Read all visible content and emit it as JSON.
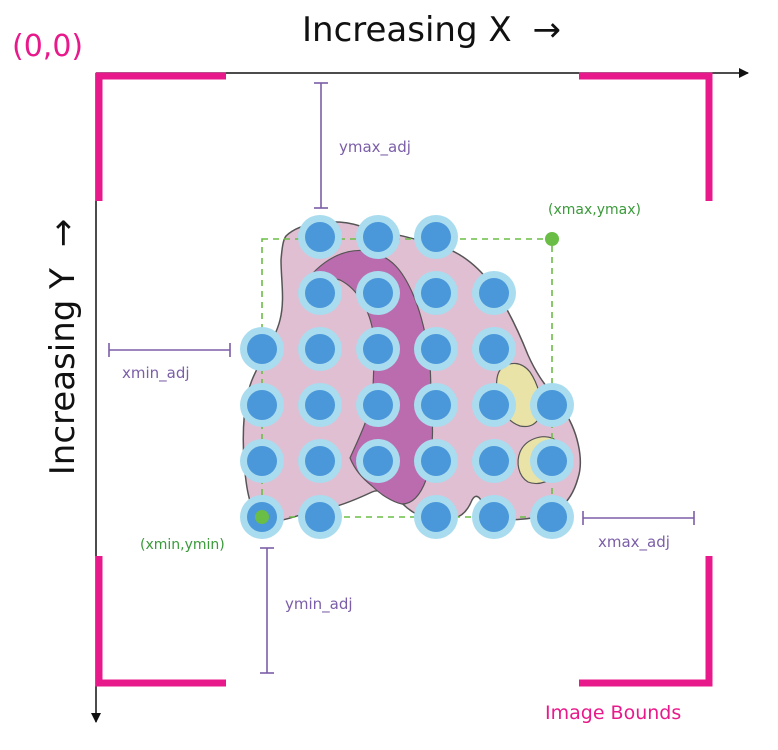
{
  "colors": {
    "magenta": "#e8198b",
    "purple": "#7b5ea7",
    "green": "#6abd45",
    "spot_inner": "#4a97d9",
    "spot_outer": "#a9dcee",
    "tissue_pink": "#e1bfd2",
    "tissue_dark": "#bb6cae",
    "tissue_yellow": "#e9e3a8",
    "outline": "#555555",
    "axis": "#111111"
  },
  "labels": {
    "origin": "(0,0)",
    "x_axis": "Increasing X",
    "x_arrow": "→",
    "y_axis": "Increasing Y",
    "y_arrow": "→",
    "xmin_adj": "xmin_adj",
    "xmax_adj": "xmax_adj",
    "ymin_adj": "ymin_adj",
    "ymax_adj": "ymax_adj",
    "min_point": "(xmin,ymin)",
    "max_point": "(xmax,ymax)",
    "image_bounds": "Image Bounds"
  },
  "spot_grid": {
    "rows": [
      {
        "columns": [
          2,
          3,
          4
        ]
      },
      {
        "columns": [
          2,
          3,
          4,
          5
        ]
      },
      {
        "columns": [
          1,
          2,
          3,
          4,
          5
        ]
      },
      {
        "columns": [
          1,
          2,
          3,
          4,
          5,
          6
        ]
      },
      {
        "columns": [
          1,
          2,
          3,
          4,
          5,
          6
        ]
      },
      {
        "columns": [
          1,
          2,
          4,
          5,
          6
        ]
      }
    ]
  }
}
